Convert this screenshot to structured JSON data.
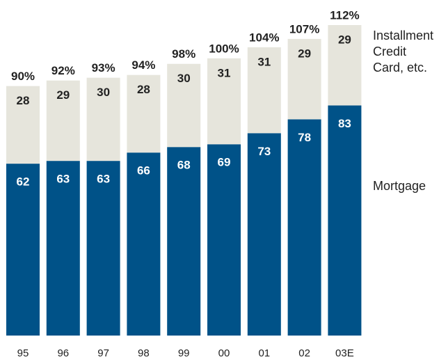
{
  "chart_data": {
    "type": "stacked_bar",
    "categories": [
      "95",
      "96",
      "97",
      "98",
      "99",
      "00",
      "01",
      "02",
      "03E"
    ],
    "series": [
      {
        "name": "Mortgage",
        "color": "#005288",
        "values": [
          62,
          63,
          63,
          66,
          68,
          69,
          73,
          78,
          83
        ]
      },
      {
        "name": "Installment Credit Card, etc.",
        "color": "#e6e5dc",
        "values": [
          28,
          29,
          30,
          28,
          30,
          31,
          31,
          29,
          29
        ]
      }
    ],
    "total_labels": [
      "90%",
      "92%",
      "93%",
      "94%",
      "98%",
      "100%",
      "104%",
      "107%",
      "112%"
    ]
  }
}
